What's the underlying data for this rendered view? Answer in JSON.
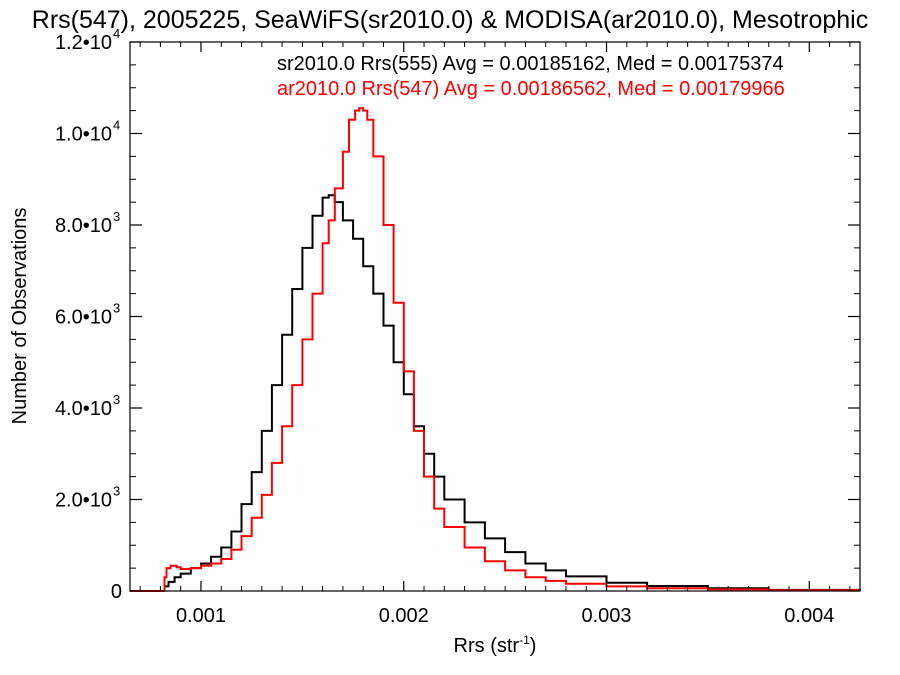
{
  "chart_data": {
    "type": "line",
    "title": "Rrs(547), 2005225, SeaWiFS(sr2010.0) & MODISA(ar2010.0), Mesotrophic",
    "xlabel": "Rrs (str",
    "xlabel_sup": "-1",
    "xlabel_close": ")",
    "ylabel": "Number of Observations",
    "xlim": [
      0.00065,
      0.00425
    ],
    "ylim": [
      0,
      12000
    ],
    "x_ticks": [
      {
        "value": 0.001,
        "label": "0.001"
      },
      {
        "value": 0.002,
        "label": "0.002"
      },
      {
        "value": 0.003,
        "label": "0.003"
      },
      {
        "value": 0.004,
        "label": "0.004"
      }
    ],
    "y_ticks": [
      {
        "value": 0,
        "mant": "0",
        "exp": ""
      },
      {
        "value": 2000,
        "mant": "2.0•10",
        "exp": "3"
      },
      {
        "value": 4000,
        "mant": "4.0•10",
        "exp": "3"
      },
      {
        "value": 6000,
        "mant": "6.0•10",
        "exp": "3"
      },
      {
        "value": 8000,
        "mant": "8.0•10",
        "exp": "3"
      },
      {
        "value": 10000,
        "mant": "1.0•10",
        "exp": "4"
      },
      {
        "value": 12000,
        "mant": "1.2•10",
        "exp": "4"
      }
    ],
    "grid": false,
    "legend_placement": "top-right",
    "series": [
      {
        "name": "sr2010.0 Rrs(555) Avg = 0.00185162, Med = 0.00175374",
        "color": "#000000",
        "x": [
          0.00065,
          0.00081,
          0.00082,
          0.00084,
          0.00087,
          0.0009,
          0.00095,
          0.001,
          0.00105,
          0.0011,
          0.00115,
          0.0012,
          0.00125,
          0.0013,
          0.00135,
          0.0014,
          0.00145,
          0.0015,
          0.00155,
          0.0016,
          0.00163,
          0.00166,
          0.0017,
          0.00175,
          0.0018,
          0.00185,
          0.0019,
          0.00195,
          0.002,
          0.00205,
          0.0021,
          0.00215,
          0.0022,
          0.0023,
          0.0024,
          0.0025,
          0.0026,
          0.0027,
          0.0028,
          0.003,
          0.0032,
          0.0035,
          0.0038,
          0.00425
        ],
        "y": [
          0,
          0,
          100,
          200,
          300,
          380,
          500,
          600,
          750,
          950,
          1300,
          1900,
          2600,
          3500,
          4500,
          5600,
          6600,
          7500,
          8200,
          8600,
          8650,
          8500,
          8100,
          7700,
          7100,
          6500,
          5800,
          5000,
          4300,
          3600,
          3000,
          2500,
          2000,
          1500,
          1150,
          850,
          600,
          450,
          320,
          180,
          110,
          60,
          25,
          5
        ]
      },
      {
        "name": "ar2010.0 Rrs(547) Avg = 0.00186562, Med = 0.00179966",
        "color": "#ff0000",
        "x": [
          0.00065,
          0.00081,
          0.00082,
          0.00083,
          0.00085,
          0.00088,
          0.0009,
          0.00095,
          0.001,
          0.00105,
          0.0011,
          0.00115,
          0.0012,
          0.00125,
          0.0013,
          0.00135,
          0.0014,
          0.00145,
          0.0015,
          0.00155,
          0.0016,
          0.00163,
          0.00166,
          0.0017,
          0.00173,
          0.00176,
          0.00178,
          0.0018,
          0.00182,
          0.00185,
          0.0019,
          0.00195,
          0.002,
          0.00205,
          0.0021,
          0.00215,
          0.0022,
          0.0023,
          0.0024,
          0.0025,
          0.0026,
          0.0027,
          0.0028,
          0.003,
          0.0032,
          0.0035,
          0.0038,
          0.00425
        ],
        "y": [
          0,
          0,
          300,
          500,
          550,
          520,
          480,
          500,
          550,
          600,
          700,
          900,
          1200,
          1600,
          2100,
          2800,
          3600,
          4500,
          5500,
          6500,
          7600,
          8100,
          8800,
          9600,
          10300,
          10500,
          10550,
          10500,
          10300,
          9500,
          8000,
          6300,
          4800,
          3500,
          2500,
          1800,
          1400,
          950,
          650,
          450,
          300,
          220,
          160,
          100,
          60,
          35,
          15,
          5
        ]
      }
    ]
  }
}
